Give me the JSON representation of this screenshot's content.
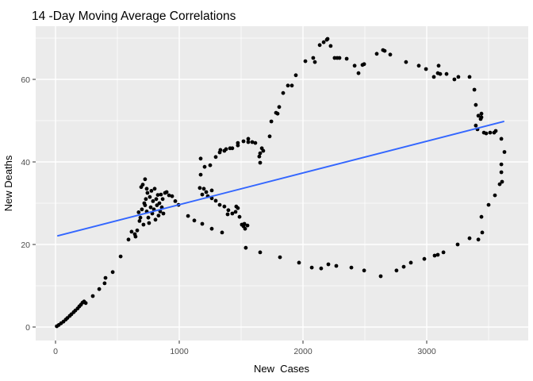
{
  "title": "14 -Day Moving Average Correlations",
  "chart_data": {
    "type": "scatter",
    "title": "14 -Day Moving Average Correlations",
    "xlabel": "New  Cases",
    "ylabel": "New Deaths",
    "xlim": [
      -180,
      3820
    ],
    "ylim": [
      -3.5,
      73
    ],
    "grid": true,
    "legend": "none",
    "panel_bg": "#EBEBEB",
    "grid_color": "#FFFFFF",
    "tick_color": "#333333",
    "tick_label_color": "#4D4D4D",
    "point_color": "#000000",
    "x_ticks": [
      0,
      1000,
      2000,
      3000
    ],
    "x_minor_ticks": [
      500,
      1500,
      2500,
      3500
    ],
    "y_ticks": [
      0,
      20,
      40,
      60
    ],
    "y_minor_ticks": [
      10,
      30,
      50,
      70
    ],
    "trend_line": {
      "type": "linear",
      "color": "#3366FF",
      "x1": 19,
      "y1": 22.1,
      "x2": 3622,
      "y2": 49.8
    },
    "points": [
      [
        10,
        0.2
      ],
      [
        26,
        0.5
      ],
      [
        45,
        0.9
      ],
      [
        64,
        1.3
      ],
      [
        83,
        1.8
      ],
      [
        96,
        2.2
      ],
      [
        115,
        2.7
      ],
      [
        128,
        3.1
      ],
      [
        147,
        3.6
      ],
      [
        160,
        4.0
      ],
      [
        179,
        4.5
      ],
      [
        192,
        5.0
      ],
      [
        205,
        5.4
      ],
      [
        218,
        5.9
      ],
      [
        231,
        6.2
      ],
      [
        244,
        5.8
      ],
      [
        301,
        7.5
      ],
      [
        353,
        9.2
      ],
      [
        397,
        10.6
      ],
      [
        404,
        11.9
      ],
      [
        462,
        13.3
      ],
      [
        526,
        17.1
      ],
      [
        590,
        21.2
      ],
      [
        615,
        23.1
      ],
      [
        641,
        22.5
      ],
      [
        647,
        21.9
      ],
      [
        660,
        23.4
      ],
      [
        672,
        27.8
      ],
      [
        679,
        25.7
      ],
      [
        686,
        26.5
      ],
      [
        692,
        33.9
      ],
      [
        698,
        28.5
      ],
      [
        705,
        34.5
      ],
      [
        711,
        24.8
      ],
      [
        717,
        30.0
      ],
      [
        724,
        35.8
      ],
      [
        724,
        29.5
      ],
      [
        730,
        31.0
      ],
      [
        737,
        28.0
      ],
      [
        737,
        33.5
      ],
      [
        743,
        32.5
      ],
      [
        750,
        26.5
      ],
      [
        756,
        25.2
      ],
      [
        762,
        31.5
      ],
      [
        769,
        29.0
      ],
      [
        775,
        33.0
      ],
      [
        782,
        27.5
      ],
      [
        788,
        30.5
      ],
      [
        795,
        28.5
      ],
      [
        801,
        33.5
      ],
      [
        808,
        26.0
      ],
      [
        814,
        31.0
      ],
      [
        820,
        29.5
      ],
      [
        827,
        32.0
      ],
      [
        833,
        27.0
      ],
      [
        840,
        30.0
      ],
      [
        846,
        28.0
      ],
      [
        852,
        32.1
      ],
      [
        859,
        29.0
      ],
      [
        866,
        31.0
      ],
      [
        872,
        27.5
      ],
      [
        885,
        32.5
      ],
      [
        898,
        32.7
      ],
      [
        917,
        31.9
      ],
      [
        942,
        31.7
      ],
      [
        968,
        30.5
      ],
      [
        994,
        29.6
      ],
      [
        1071,
        26.9
      ],
      [
        1122,
        25.8
      ],
      [
        1186,
        25.0
      ],
      [
        1263,
        23.8
      ],
      [
        1346,
        22.9
      ],
      [
        1506,
        24.8
      ],
      [
        1519,
        24.4
      ],
      [
        1532,
        23.8
      ],
      [
        1551,
        24.6
      ],
      [
        1538,
        19.2
      ],
      [
        1654,
        18.1
      ],
      [
        1814,
        16.9
      ],
      [
        1968,
        15.6
      ],
      [
        2071,
        14.4
      ],
      [
        2147,
        14.2
      ],
      [
        2205,
        15.2
      ],
      [
        2269,
        14.8
      ],
      [
        2391,
        14.4
      ],
      [
        2494,
        13.7
      ],
      [
        2628,
        12.3
      ],
      [
        2756,
        13.7
      ],
      [
        2814,
        14.6
      ],
      [
        2872,
        15.6
      ],
      [
        2981,
        16.5
      ],
      [
        3064,
        17.3
      ],
      [
        3090,
        17.5
      ],
      [
        3135,
        18.1
      ],
      [
        3250,
        20.0
      ],
      [
        3346,
        21.5
      ],
      [
        3417,
        21.2
      ],
      [
        3449,
        22.9
      ],
      [
        3442,
        26.7
      ],
      [
        3500,
        29.6
      ],
      [
        3551,
        31.9
      ],
      [
        3590,
        34.6
      ],
      [
        3609,
        35.2
      ],
      [
        3603,
        37.5
      ],
      [
        3603,
        39.4
      ],
      [
        3628,
        42.4
      ],
      [
        3603,
        45.6
      ],
      [
        3558,
        47.5
      ],
      [
        3545,
        47.1
      ],
      [
        3513,
        47.1
      ],
      [
        3481,
        46.9
      ],
      [
        3462,
        47.1
      ],
      [
        3410,
        47.9
      ],
      [
        3397,
        48.8
      ],
      [
        3442,
        50.8
      ],
      [
        3436,
        50.4
      ],
      [
        3417,
        51.2
      ],
      [
        3442,
        51.7
      ],
      [
        3397,
        53.8
      ],
      [
        3385,
        57.5
      ],
      [
        3346,
        60.6
      ],
      [
        3256,
        60.6
      ],
      [
        3224,
        60.0
      ],
      [
        3160,
        61.3
      ],
      [
        3109,
        61.3
      ],
      [
        3090,
        61.5
      ],
      [
        3096,
        63.3
      ],
      [
        3058,
        60.6
      ],
      [
        2994,
        62.5
      ],
      [
        2936,
        63.3
      ],
      [
        2833,
        64.2
      ],
      [
        2705,
        66.0
      ],
      [
        2660,
        66.9
      ],
      [
        2647,
        67.1
      ],
      [
        2596,
        66.2
      ],
      [
        2494,
        63.7
      ],
      [
        2481,
        63.5
      ],
      [
        2449,
        61.5
      ],
      [
        2417,
        63.3
      ],
      [
        2353,
        65.0
      ],
      [
        2295,
        65.2
      ],
      [
        2276,
        65.2
      ],
      [
        2256,
        65.2
      ],
      [
        2224,
        68.1
      ],
      [
        2199,
        69.8
      ],
      [
        2192,
        69.6
      ],
      [
        2167,
        69.0
      ],
      [
        2135,
        68.3
      ],
      [
        2096,
        64.2
      ],
      [
        2083,
        65.2
      ],
      [
        2019,
        64.4
      ],
      [
        1942,
        61.0
      ],
      [
        1910,
        58.5
      ],
      [
        1878,
        58.5
      ],
      [
        1840,
        56.7
      ],
      [
        1808,
        53.3
      ],
      [
        1782,
        51.9
      ],
      [
        1795,
        51.7
      ],
      [
        1744,
        49.8
      ],
      [
        1731,
        46.2
      ],
      [
        1173,
        40.8
      ],
      [
        1205,
        38.8
      ],
      [
        1250,
        39.2
      ],
      [
        1173,
        36.9
      ],
      [
        1295,
        41.2
      ],
      [
        1327,
        42.3
      ],
      [
        1333,
        42.9
      ],
      [
        1365,
        42.7
      ],
      [
        1378,
        43.1
      ],
      [
        1410,
        43.3
      ],
      [
        1429,
        43.3
      ],
      [
        1474,
        44.0
      ],
      [
        1474,
        44.6
      ],
      [
        1519,
        45.0
      ],
      [
        1558,
        44.8
      ],
      [
        1558,
        45.6
      ],
      [
        1590,
        44.8
      ],
      [
        1615,
        44.6
      ],
      [
        1667,
        43.3
      ],
      [
        1679,
        42.7
      ],
      [
        1654,
        42.1
      ],
      [
        1647,
        41.3
      ],
      [
        1654,
        39.8
      ],
      [
        1166,
        33.7
      ],
      [
        1199,
        33.5
      ],
      [
        1218,
        32.7
      ],
      [
        1186,
        32.1
      ],
      [
        1231,
        31.7
      ],
      [
        1263,
        33.1
      ],
      [
        1263,
        31.2
      ],
      [
        1295,
        30.6
      ],
      [
        1327,
        29.6
      ],
      [
        1365,
        29.2
      ],
      [
        1397,
        28.3
      ],
      [
        1391,
        27.3
      ],
      [
        1429,
        27.5
      ],
      [
        1455,
        27.9
      ],
      [
        1461,
        29.2
      ],
      [
        1487,
        26.7
      ],
      [
        1474,
        28.8
      ],
      [
        1526,
        25.0
      ]
    ]
  }
}
